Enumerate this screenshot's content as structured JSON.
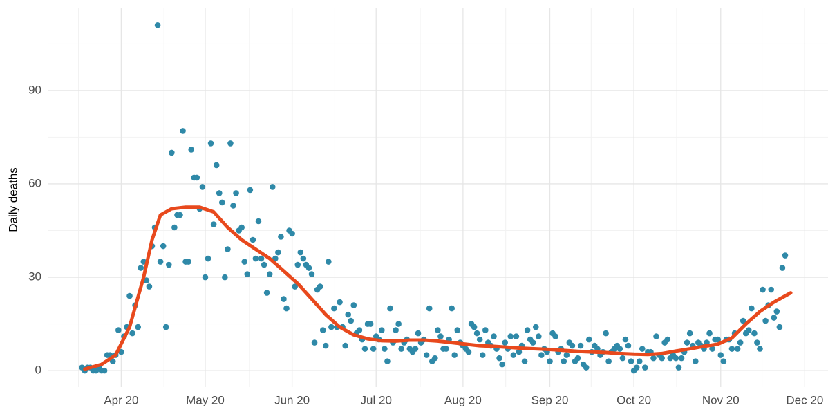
{
  "chart_data": {
    "type": "scatter",
    "y_label": "Daily deaths",
    "x": [
      78,
      79,
      80,
      81,
      82,
      83,
      84,
      85,
      86,
      87,
      88,
      89,
      90,
      91,
      92,
      93,
      94,
      95,
      96,
      97,
      98,
      99,
      100,
      101,
      102,
      103,
      104,
      105,
      106,
      107,
      108,
      109,
      110,
      111,
      112,
      113,
      114,
      115,
      116,
      117,
      118,
      119,
      120,
      121,
      122,
      123,
      124,
      125,
      126,
      127,
      128,
      129,
      130,
      131,
      132,
      133,
      134,
      135,
      136,
      137,
      138,
      139,
      140,
      141,
      142,
      143,
      144,
      145,
      146,
      147,
      148,
      149,
      150,
      151,
      152,
      153,
      154,
      155,
      156,
      157,
      158,
      159,
      160,
      161,
      162,
      163,
      164,
      165,
      166,
      167,
      168,
      169,
      170,
      171,
      172,
      173,
      174,
      175,
      176,
      177,
      178,
      179,
      180,
      181,
      182,
      183,
      184,
      185,
      186,
      187,
      188,
      189,
      190,
      191,
      192,
      193,
      194,
      195,
      196,
      197,
      198,
      199,
      200,
      201,
      202,
      203,
      204,
      205,
      206,
      207,
      208,
      209,
      210,
      211,
      212,
      213,
      214,
      215,
      216,
      217,
      218,
      219,
      220,
      221,
      222,
      223,
      224,
      225,
      226,
      227,
      228,
      229,
      230,
      231,
      232,
      233,
      234,
      235,
      236,
      237,
      238,
      239,
      240,
      241,
      242,
      243,
      244,
      245,
      246,
      247,
      248,
      249,
      250,
      251,
      252,
      253,
      254,
      255,
      256,
      257,
      258,
      259,
      260,
      261,
      262,
      263,
      264,
      265,
      266,
      267,
      268,
      269,
      270,
      271,
      272,
      273,
      274,
      275,
      276,
      277,
      278,
      279,
      280,
      281,
      282,
      283,
      284,
      285,
      286,
      287,
      288,
      289,
      290,
      291,
      292,
      293,
      294,
      295,
      296,
      297,
      298,
      299,
      300,
      301,
      302,
      303,
      304,
      305,
      306,
      307,
      308,
      309,
      310,
      311,
      312,
      313,
      314,
      315,
      316,
      317,
      318,
      319,
      320,
      321,
      322,
      323,
      324,
      325,
      326,
      327,
      328,
      329
    ],
    "values": [
      1,
      0,
      1,
      1,
      0,
      0,
      1,
      0,
      0,
      5,
      5,
      3,
      5,
      13,
      6,
      11,
      14,
      24,
      12,
      21,
      14,
      33,
      35,
      29,
      27,
      40,
      46,
      111,
      35,
      40,
      14,
      34,
      70,
      46,
      50,
      50,
      77,
      35,
      35,
      71,
      62,
      62,
      52,
      59,
      30,
      36,
      73,
      47,
      66,
      57,
      54,
      30,
      39,
      73,
      53,
      57,
      45,
      46,
      35,
      31,
      58,
      42,
      36,
      48,
      36,
      34,
      25,
      31,
      59,
      36,
      38,
      43,
      23,
      20,
      45,
      44,
      27,
      34,
      38,
      36,
      34,
      33,
      31,
      9,
      26,
      27,
      13,
      8,
      35,
      14,
      20,
      14,
      22,
      14,
      8,
      18,
      16,
      21,
      12,
      13,
      10,
      7,
      15,
      15,
      7,
      11,
      10,
      13,
      7,
      3,
      20,
      9,
      13,
      15,
      7,
      9,
      10,
      7,
      6,
      7,
      12,
      9,
      10,
      5,
      20,
      3,
      4,
      13,
      11,
      7,
      7,
      10,
      20,
      5,
      13,
      9,
      8,
      7,
      6,
      15,
      14,
      12,
      10,
      5,
      13,
      9,
      8,
      11,
      7,
      4,
      2,
      9,
      7,
      11,
      5,
      11,
      6,
      8,
      3,
      13,
      10,
      9,
      14,
      11,
      5,
      7,
      6,
      3,
      12,
      11,
      6,
      7,
      3,
      5,
      9,
      8,
      3,
      4,
      8,
      2,
      1,
      10,
      6,
      8,
      7,
      5,
      6,
      12,
      3,
      6,
      7,
      8,
      7,
      4,
      10,
      8,
      3,
      0,
      1,
      3,
      7,
      1,
      6,
      6,
      4,
      11,
      5,
      4,
      9,
      10,
      4,
      5,
      4,
      1,
      4,
      6,
      9,
      12,
      8,
      3,
      9,
      8,
      7,
      9,
      12,
      7,
      10,
      10,
      5,
      3,
      10,
      10,
      7,
      12,
      7,
      9,
      16,
      12,
      13,
      20,
      12,
      9,
      7,
      26,
      16,
      21,
      26,
      17,
      19,
      14,
      33,
      37
    ],
    "color": "#2f89a8",
    "trend": {
      "color": "#e8491d",
      "x": [
        79,
        85,
        90,
        95,
        100,
        103,
        106,
        110,
        115,
        120,
        125,
        130,
        135,
        140,
        145,
        150,
        155,
        160,
        165,
        170,
        175,
        180,
        185,
        190,
        195,
        200,
        205,
        210,
        215,
        220,
        225,
        230,
        235,
        240,
        245,
        250,
        255,
        260,
        265,
        270,
        275,
        280,
        285,
        290,
        295,
        300,
        305,
        310,
        315,
        320,
        325,
        331
      ],
      "values": [
        0.5,
        2,
        5,
        14,
        30,
        42,
        50,
        52,
        52.5,
        52.5,
        51,
        46,
        42,
        39,
        36,
        32,
        28,
        23,
        18,
        14,
        11.5,
        10.2,
        9.6,
        9.5,
        9.8,
        9.8,
        9.5,
        9,
        8.5,
        8,
        7.8,
        7.5,
        7.2,
        7,
        6.8,
        6.5,
        6.2,
        6,
        5.8,
        5.5,
        5.3,
        5.2,
        5.5,
        6.3,
        7,
        7.8,
        8.5,
        10.5,
        15,
        19,
        22,
        25
      ]
    },
    "xlim": [
      66,
      344.3
    ],
    "ylim": [
      -5.3,
      116.4
    ],
    "xticks": [
      {
        "value": 92,
        "label": "Apr 20"
      },
      {
        "value": 122,
        "label": "May 20"
      },
      {
        "value": 153,
        "label": "Jun 20"
      },
      {
        "value": 183,
        "label": "Jul 20"
      },
      {
        "value": 214,
        "label": "Aug 20"
      },
      {
        "value": 245,
        "label": "Sep 20"
      },
      {
        "value": 275,
        "label": "Oct 20"
      },
      {
        "value": 306,
        "label": "Nov 20"
      },
      {
        "value": 336,
        "label": "Dec 20"
      }
    ],
    "yticks": [
      0,
      30,
      60,
      90
    ],
    "grid": true
  }
}
